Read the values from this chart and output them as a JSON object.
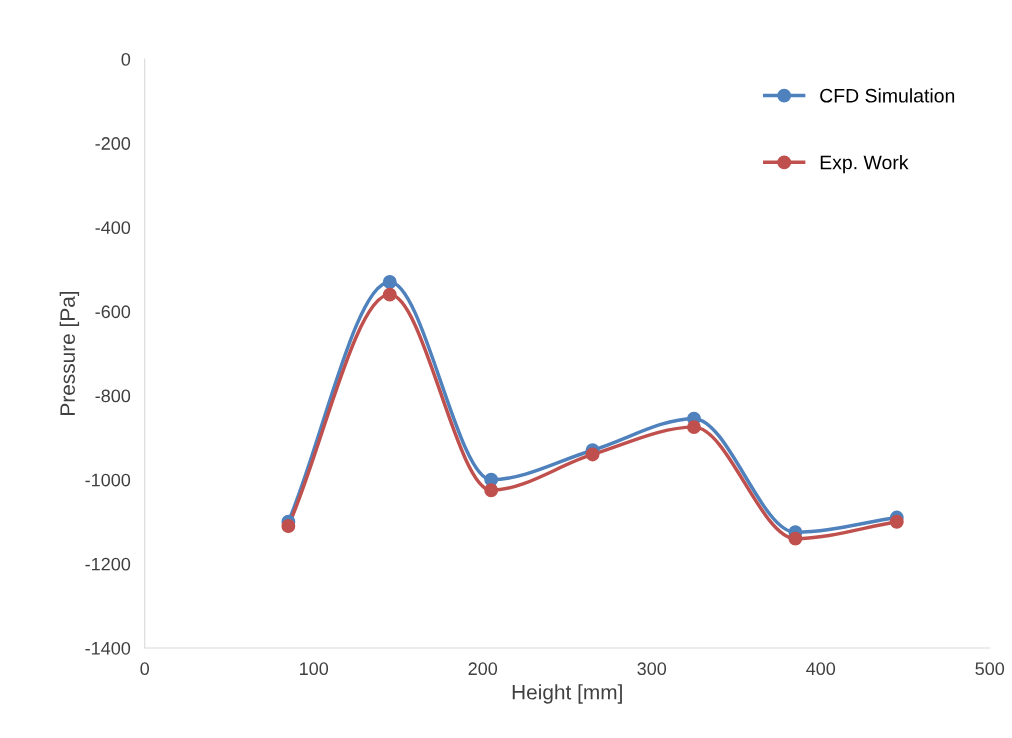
{
  "chart_data": {
    "type": "line",
    "xlabel": "Height [mm]",
    "ylabel": "Pressure [Pa]",
    "x": [
      85,
      145,
      205,
      265,
      325,
      385,
      445
    ],
    "series": [
      {
        "name": "CFD Simulation",
        "color": "#4f81bd",
        "values": [
          -1100,
          -530,
          -1000,
          -930,
          -855,
          -1125,
          -1090
        ]
      },
      {
        "name": "Exp. Work",
        "color": "#c0504d",
        "values": [
          -1110,
          -560,
          -1025,
          -940,
          -875,
          -1140,
          -1100
        ]
      }
    ],
    "xlim": [
      0,
      500
    ],
    "xticks": [
      0,
      100,
      200,
      300,
      400,
      500
    ],
    "ylim": [
      -1400,
      0
    ],
    "yticks": [
      -1400,
      -1200,
      -1000,
      -800,
      -600,
      -400,
      -200,
      0
    ],
    "grid": false,
    "legend": "top right",
    "marker": "circle",
    "line_style": "solid"
  }
}
